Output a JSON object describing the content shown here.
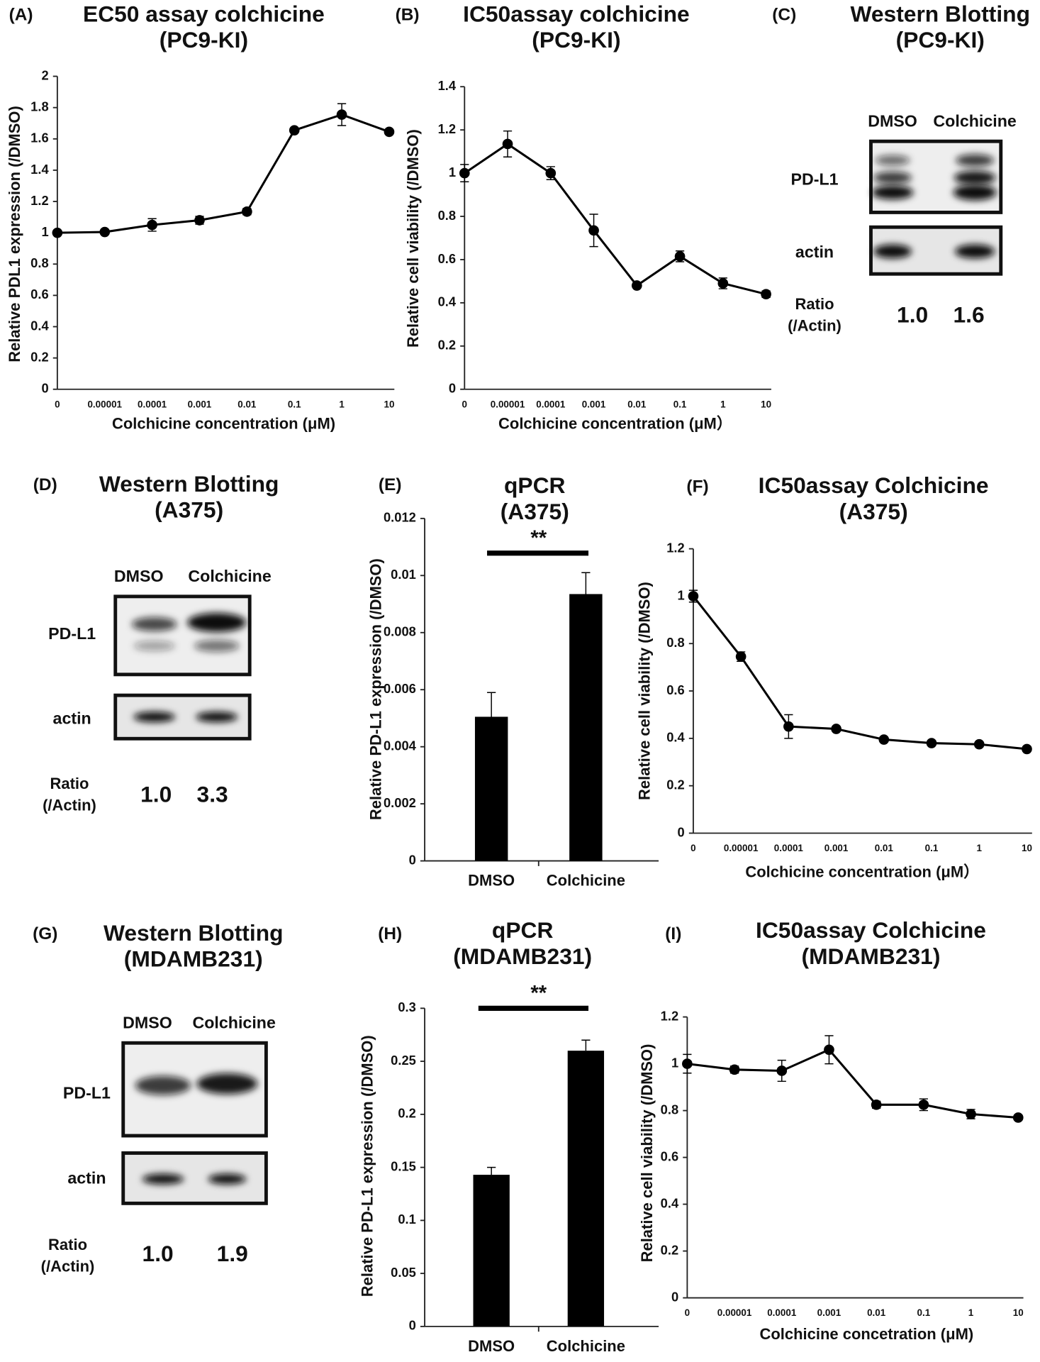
{
  "chart_data": [
    {
      "type": "line",
      "panel": "(A)",
      "title": "EC50 assay colchicine",
      "subtitle": "(PC9-KI)",
      "x_label": "Colchicine concentration (μM)",
      "y_label": "Relative  PDL1  expression (/DMSO)",
      "categories": [
        "0",
        "0.00001",
        "0.0001",
        "0.001",
        "0.01",
        "0.1",
        "1",
        "10"
      ],
      "values": [
        1.0,
        1.005,
        1.05,
        1.08,
        1.135,
        1.655,
        1.755,
        1.645
      ],
      "errors": [
        0.005,
        0.01,
        0.04,
        0.025,
        0.02,
        0.01,
        0.07,
        0.01
      ],
      "color": "#000000",
      "ylim": [
        0,
        2
      ],
      "yticks": [
        0,
        0.2,
        0.4,
        0.6,
        0.8,
        1,
        1.2,
        1.4,
        1.6,
        1.8,
        2
      ]
    },
    {
      "type": "line",
      "panel": "(B)",
      "title": "IC50assay colchicine",
      "subtitle": "(PC9-KI)",
      "x_label": "Colchicine concentration (μM）",
      "y_label": "Relative cell viability (/DMSO)",
      "categories": [
        "0",
        "0.00001",
        "0.0001",
        "0.001",
        "0.01",
        "0.1",
        "1",
        "10"
      ],
      "values": [
        1.0,
        1.135,
        1.0,
        0.735,
        0.48,
        0.615,
        0.49,
        0.44
      ],
      "errors": [
        0.04,
        0.06,
        0.03,
        0.075,
        0.01,
        0.025,
        0.025,
        0.015
      ],
      "color": "#000000",
      "ylim": [
        0,
        1.4
      ],
      "yticks": [
        0,
        0.2,
        0.4,
        0.6,
        0.8,
        1,
        1.2,
        1.4
      ]
    },
    {
      "type": "bar",
      "panel": "(E)",
      "title": "qPCR",
      "subtitle": "(A375)",
      "y_label": "Relative PD-L1 expression (/DMSO)",
      "annotation": "**",
      "categories": [
        "DMSO",
        "Colchicine"
      ],
      "values": [
        0.00505,
        0.00935
      ],
      "errors": [
        0.00085,
        0.00075
      ],
      "color": "#000000",
      "ylim": [
        0,
        0.012
      ],
      "yticks": [
        0,
        0.002,
        0.004,
        0.006,
        0.008,
        0.01,
        0.012
      ]
    },
    {
      "type": "line",
      "panel": "(F)",
      "title": "IC50assay Colchicine",
      "subtitle": "(A375)",
      "x_label": "Colchicine concentration (μM）",
      "y_label": "Relative cell viability (/DMSO)",
      "categories": [
        "0",
        "0.00001",
        "0.0001",
        "0.001",
        "0.01",
        "0.1",
        "1",
        "10"
      ],
      "values": [
        1.0,
        0.745,
        0.45,
        0.44,
        0.395,
        0.38,
        0.375,
        0.355
      ],
      "errors": [
        0.025,
        0.02,
        0.05,
        0.01,
        0.01,
        0.01,
        0.01,
        0.01
      ],
      "color": "#000000",
      "ylim": [
        0,
        1.2
      ],
      "yticks": [
        0,
        0.2,
        0.4,
        0.6,
        0.8,
        1,
        1.2
      ]
    },
    {
      "type": "bar",
      "panel": "(H)",
      "title": "qPCR",
      "subtitle": "(MDAMB231)",
      "y_label": "Relative PD-L1 expression (/DMSO)",
      "annotation": "**",
      "categories": [
        "DMSO",
        "Colchicine"
      ],
      "values": [
        0.143,
        0.26
      ],
      "errors": [
        0.007,
        0.01
      ],
      "color": "#000000",
      "ylim": [
        0,
        0.3
      ],
      "yticks": [
        0,
        0.05,
        0.1,
        0.15,
        0.2,
        0.25,
        0.3
      ]
    },
    {
      "type": "line",
      "panel": "(I)",
      "title": "IC50assay Colchicine",
      "subtitle": "(MDAMB231)",
      "x_label": "Colchicine concetration (μM)",
      "y_label": "Relative  cell viability (/DMSO)",
      "categories": [
        "0",
        "0.00001",
        "0.0001",
        "0.001",
        "0.01",
        "0.1",
        "1",
        "10"
      ],
      "values": [
        1.0,
        0.975,
        0.97,
        1.06,
        0.825,
        0.825,
        0.785,
        0.77
      ],
      "errors": [
        0.04,
        0.015,
        0.045,
        0.06,
        0.015,
        0.025,
        0.02,
        0.01
      ],
      "color": "#000000",
      "ylim": [
        0,
        1.2
      ],
      "yticks": [
        0,
        0.2,
        0.4,
        0.6,
        0.8,
        1,
        1.2
      ]
    }
  ],
  "blots": [
    {
      "panel": "(C)",
      "title": "Western Blotting",
      "subtitle": "(PC9-KI)",
      "lanes": [
        "DMSO",
        "Colchicine"
      ],
      "rows": [
        "PD-L1",
        "actin"
      ],
      "ratio_label": [
        "Ratio",
        "(/Actin)"
      ],
      "values": [
        1.0,
        1.6
      ],
      "value_labels": [
        "1.0",
        "1.6"
      ]
    },
    {
      "panel": "(D)",
      "title": "Western Blotting",
      "subtitle": "(A375)",
      "lanes": [
        "DMSO",
        "Colchicine"
      ],
      "rows": [
        "PD-L1",
        "actin"
      ],
      "ratio_label": [
        "Ratio",
        "(/Actin)"
      ],
      "values": [
        1.0,
        3.3
      ],
      "value_labels": [
        "1.0",
        "3.3"
      ]
    },
    {
      "panel": "(G)",
      "title": "Western Blotting",
      "subtitle": "(MDAMB231)",
      "lanes": [
        "DMSO",
        "Colchicine"
      ],
      "rows": [
        "PD-L1",
        "actin"
      ],
      "ratio_label": [
        "Ratio",
        "(/Actin)"
      ],
      "values": [
        1.0,
        1.9
      ],
      "value_labels": [
        "1.0",
        "1.9"
      ]
    }
  ]
}
